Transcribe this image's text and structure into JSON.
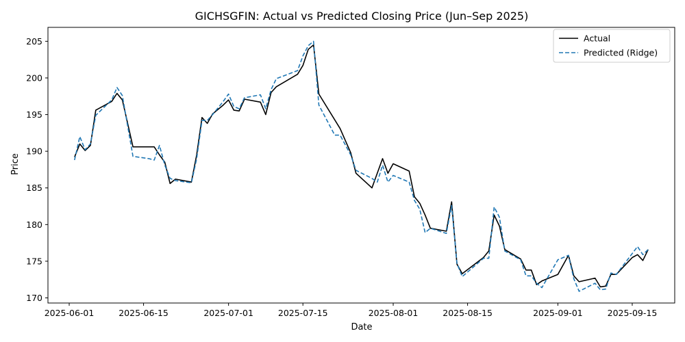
{
  "chart_data": {
    "type": "line",
    "title": "GICHSGFIN: Actual vs Predicted Closing Price (Jun–Sep 2025)",
    "xlabel": "Date",
    "ylabel": "Price",
    "xlim": [
      "2025-05-28",
      "2025-09-23"
    ],
    "ylim": [
      169.3,
      206.9
    ],
    "xticks": [
      "2025-06-01",
      "2025-06-15",
      "2025-07-01",
      "2025-07-15",
      "2025-08-01",
      "2025-08-15",
      "2025-09-01",
      "2025-09-15"
    ],
    "yticks": [
      170,
      175,
      180,
      185,
      190,
      195,
      200,
      205
    ],
    "grid": false,
    "legend_position": "top-right",
    "series": [
      {
        "name": "Actual",
        "color": "#000000",
        "dash": "solid",
        "points": [
          [
            "2025-06-02",
            189.2
          ],
          [
            "2025-06-03",
            191.0
          ],
          [
            "2025-06-04",
            190.1
          ],
          [
            "2025-06-05",
            190.8
          ],
          [
            "2025-06-06",
            195.6
          ],
          [
            "2025-06-09",
            196.8
          ],
          [
            "2025-06-10",
            197.9
          ],
          [
            "2025-06-11",
            197.0
          ],
          [
            "2025-06-13",
            190.6
          ],
          [
            "2025-06-16",
            190.6
          ],
          [
            "2025-06-17",
            190.6
          ],
          [
            "2025-06-18",
            189.5
          ],
          [
            "2025-06-19",
            188.5
          ],
          [
            "2025-06-20",
            185.6
          ],
          [
            "2025-06-21",
            186.2
          ],
          [
            "2025-06-24",
            185.8
          ],
          [
            "2025-06-25",
            189.5
          ],
          [
            "2025-06-26",
            194.6
          ],
          [
            "2025-06-27",
            193.8
          ],
          [
            "2025-06-28",
            195.1
          ],
          [
            "2025-06-30",
            196.3
          ],
          [
            "2025-07-01",
            197.0
          ],
          [
            "2025-07-02",
            195.6
          ],
          [
            "2025-07-03",
            195.5
          ],
          [
            "2025-07-04",
            197.1
          ],
          [
            "2025-07-07",
            196.7
          ],
          [
            "2025-07-08",
            195.0
          ],
          [
            "2025-07-09",
            198.0
          ],
          [
            "2025-07-10",
            198.8
          ],
          [
            "2025-07-14",
            200.5
          ],
          [
            "2025-07-15",
            201.7
          ],
          [
            "2025-07-16",
            203.9
          ],
          [
            "2025-07-17",
            204.5
          ],
          [
            "2025-07-18",
            197.8
          ],
          [
            "2025-07-22",
            193.1
          ],
          [
            "2025-07-24",
            189.8
          ],
          [
            "2025-07-25",
            187.0
          ],
          [
            "2025-07-28",
            185.0
          ],
          [
            "2025-07-30",
            189.0
          ],
          [
            "2025-07-31",
            187.0
          ],
          [
            "2025-08-01",
            188.3
          ],
          [
            "2025-08-04",
            187.3
          ],
          [
            "2025-08-05",
            183.8
          ],
          [
            "2025-08-06",
            182.9
          ],
          [
            "2025-08-07",
            181.3
          ],
          [
            "2025-08-08",
            179.5
          ],
          [
            "2025-08-11",
            179.1
          ],
          [
            "2025-08-12",
            183.1
          ],
          [
            "2025-08-13",
            174.6
          ],
          [
            "2025-08-14",
            173.3
          ],
          [
            "2025-08-18",
            175.5
          ],
          [
            "2025-08-19",
            176.4
          ],
          [
            "2025-08-20",
            181.3
          ],
          [
            "2025-08-21",
            179.8
          ],
          [
            "2025-08-22",
            176.6
          ],
          [
            "2025-08-25",
            175.3
          ],
          [
            "2025-08-26",
            173.8
          ],
          [
            "2025-08-27",
            173.8
          ],
          [
            "2025-08-28",
            171.8
          ],
          [
            "2025-08-29",
            172.3
          ],
          [
            "2025-09-01",
            173.2
          ],
          [
            "2025-09-03",
            175.8
          ],
          [
            "2025-09-04",
            173.0
          ],
          [
            "2025-09-05",
            172.2
          ],
          [
            "2025-09-08",
            172.7
          ],
          [
            "2025-09-09",
            171.5
          ],
          [
            "2025-09-10",
            171.6
          ],
          [
            "2025-09-11",
            173.2
          ],
          [
            "2025-09-12",
            173.2
          ],
          [
            "2025-09-15",
            175.5
          ],
          [
            "2025-09-16",
            175.9
          ],
          [
            "2025-09-17",
            175.1
          ],
          [
            "2025-09-18",
            176.6
          ]
        ]
      },
      {
        "name": "Predicted (Ridge)",
        "color": "#1f77b4",
        "dash": "dashed",
        "points": [
          [
            "2025-06-02",
            188.8
          ],
          [
            "2025-06-03",
            192.0
          ],
          [
            "2025-06-04",
            190.2
          ],
          [
            "2025-06-05",
            191.0
          ],
          [
            "2025-06-06",
            194.9
          ],
          [
            "2025-06-09",
            197.0
          ],
          [
            "2025-06-10",
            198.7
          ],
          [
            "2025-06-11",
            197.6
          ],
          [
            "2025-06-13",
            189.3
          ],
          [
            "2025-06-16",
            189.0
          ],
          [
            "2025-06-17",
            188.8
          ],
          [
            "2025-06-18",
            190.8
          ],
          [
            "2025-06-19",
            188.1
          ],
          [
            "2025-06-20",
            186.3
          ],
          [
            "2025-06-21",
            186.0
          ],
          [
            "2025-06-24",
            185.7
          ],
          [
            "2025-06-25",
            189.0
          ],
          [
            "2025-06-26",
            194.2
          ],
          [
            "2025-06-27",
            194.2
          ],
          [
            "2025-06-28",
            195.0
          ],
          [
            "2025-06-30",
            196.8
          ],
          [
            "2025-07-01",
            197.8
          ],
          [
            "2025-07-02",
            196.1
          ],
          [
            "2025-07-03",
            195.8
          ],
          [
            "2025-07-04",
            197.3
          ],
          [
            "2025-07-07",
            197.7
          ],
          [
            "2025-07-08",
            195.8
          ],
          [
            "2025-07-09",
            198.4
          ],
          [
            "2025-07-10",
            199.9
          ],
          [
            "2025-07-14",
            201.0
          ],
          [
            "2025-07-15",
            203.0
          ],
          [
            "2025-07-16",
            204.4
          ],
          [
            "2025-07-17",
            205.0
          ],
          [
            "2025-07-18",
            196.3
          ],
          [
            "2025-07-21",
            192.2
          ],
          [
            "2025-07-22",
            192.2
          ],
          [
            "2025-07-24",
            189.5
          ],
          [
            "2025-07-25",
            187.4
          ],
          [
            "2025-07-28",
            186.3
          ],
          [
            "2025-07-29",
            185.8
          ],
          [
            "2025-07-30",
            188.1
          ],
          [
            "2025-07-31",
            185.8
          ],
          [
            "2025-08-01",
            186.7
          ],
          [
            "2025-08-04",
            185.8
          ],
          [
            "2025-08-05",
            183.3
          ],
          [
            "2025-08-06",
            182.1
          ],
          [
            "2025-08-07",
            178.9
          ],
          [
            "2025-08-08",
            179.5
          ],
          [
            "2025-08-11",
            178.8
          ],
          [
            "2025-08-12",
            182.6
          ],
          [
            "2025-08-13",
            174.7
          ],
          [
            "2025-08-14",
            172.9
          ],
          [
            "2025-08-18",
            175.4
          ],
          [
            "2025-08-19",
            175.4
          ],
          [
            "2025-08-20",
            182.4
          ],
          [
            "2025-08-21",
            181.0
          ],
          [
            "2025-08-22",
            176.4
          ],
          [
            "2025-08-25",
            175.2
          ],
          [
            "2025-08-26",
            173.0
          ],
          [
            "2025-08-27",
            173.0
          ],
          [
            "2025-08-28",
            172.0
          ],
          [
            "2025-08-29",
            171.4
          ],
          [
            "2025-09-01",
            175.2
          ],
          [
            "2025-09-03",
            175.8
          ],
          [
            "2025-09-04",
            172.6
          ],
          [
            "2025-09-05",
            170.9
          ],
          [
            "2025-09-08",
            172.0
          ],
          [
            "2025-09-09",
            171.1
          ],
          [
            "2025-09-10",
            171.2
          ],
          [
            "2025-09-11",
            173.4
          ],
          [
            "2025-09-12",
            173.2
          ],
          [
            "2025-09-16",
            177.0
          ],
          [
            "2025-09-17",
            175.9
          ],
          [
            "2025-09-18",
            176.6
          ]
        ]
      }
    ]
  }
}
